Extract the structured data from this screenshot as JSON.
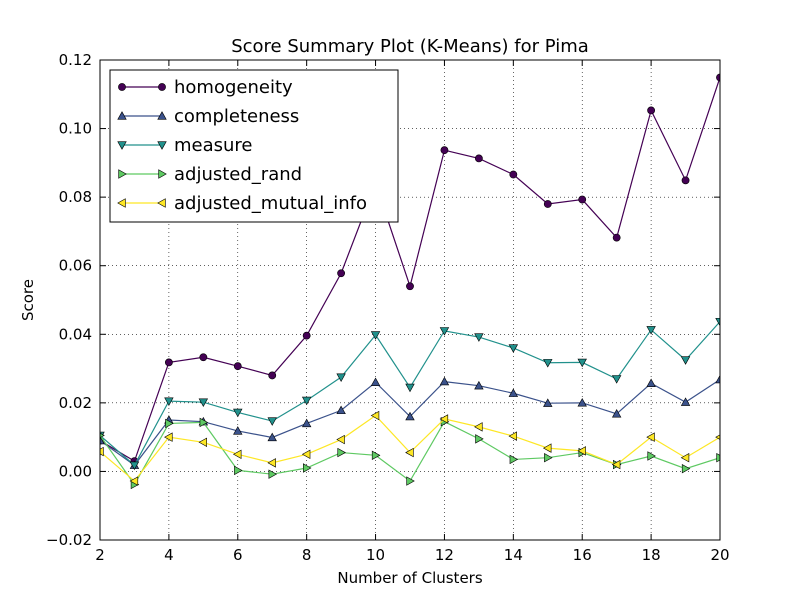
{
  "chart_data": {
    "type": "line",
    "title": "Score Summary Plot (K-Means) for Pima",
    "xlabel": "Number of Clusters",
    "ylabel": "Score",
    "xlim": [
      2,
      20
    ],
    "ylim": [
      -0.02,
      0.12
    ],
    "xticks": [
      2,
      4,
      6,
      8,
      10,
      12,
      14,
      16,
      18,
      20
    ],
    "yticks": [
      -0.02,
      0.0,
      0.02,
      0.04,
      0.06,
      0.08,
      0.1,
      0.12
    ],
    "ytick_labels": [
      "−0.02",
      "0.00",
      "0.02",
      "0.04",
      "0.06",
      "0.08",
      "0.10",
      "0.12"
    ],
    "grid": true,
    "legend_position": "top-left",
    "x": [
      2,
      3,
      4,
      5,
      6,
      7,
      8,
      9,
      10,
      11,
      12,
      13,
      14,
      15,
      16,
      17,
      18,
      19,
      20
    ],
    "series": [
      {
        "name": "homogeneity",
        "color": "#440154",
        "marker": "circle",
        "values": [
          0.009,
          0.003,
          0.0318,
          0.0333,
          0.0307,
          0.028,
          0.0396,
          0.0578,
          0.084,
          0.054,
          0.0937,
          0.0913,
          0.0866,
          0.078,
          0.0793,
          0.0682,
          0.1053,
          0.0849,
          0.1149
        ]
      },
      {
        "name": "completeness",
        "color": "#3b528b",
        "marker": "triangle-up",
        "values": [
          0.009,
          0.0018,
          0.015,
          0.0145,
          0.0118,
          0.0099,
          0.014,
          0.0178,
          0.026,
          0.016,
          0.0262,
          0.025,
          0.0228,
          0.0199,
          0.02,
          0.0168,
          0.0257,
          0.0202,
          0.0268
        ]
      },
      {
        "name": "measure",
        "color": "#21918c",
        "marker": "triangle-down",
        "values": [
          0.0105,
          0.0018,
          0.0205,
          0.0202,
          0.0172,
          0.0147,
          0.0207,
          0.0275,
          0.0398,
          0.0245,
          0.041,
          0.0392,
          0.036,
          0.0317,
          0.0318,
          0.027,
          0.0413,
          0.0325,
          0.0437
        ]
      },
      {
        "name": "adjusted_rand",
        "color": "#5ec962",
        "marker": "triangle-right",
        "values": [
          0.0105,
          -0.0038,
          0.014,
          0.0143,
          0.0003,
          -0.0008,
          0.001,
          0.0055,
          0.0047,
          -0.0028,
          0.0145,
          0.0095,
          0.0035,
          0.004,
          0.0055,
          0.002,
          0.0045,
          0.0008,
          0.004
        ]
      },
      {
        "name": "adjusted_mutual_info",
        "color": "#fde725",
        "marker": "triangle-left",
        "values": [
          0.0058,
          -0.0028,
          0.01,
          0.0085,
          0.005,
          0.0025,
          0.005,
          0.0093,
          0.0163,
          0.0055,
          0.0153,
          0.013,
          0.0103,
          0.0068,
          0.006,
          0.002,
          0.01,
          0.004,
          0.01
        ]
      }
    ]
  }
}
